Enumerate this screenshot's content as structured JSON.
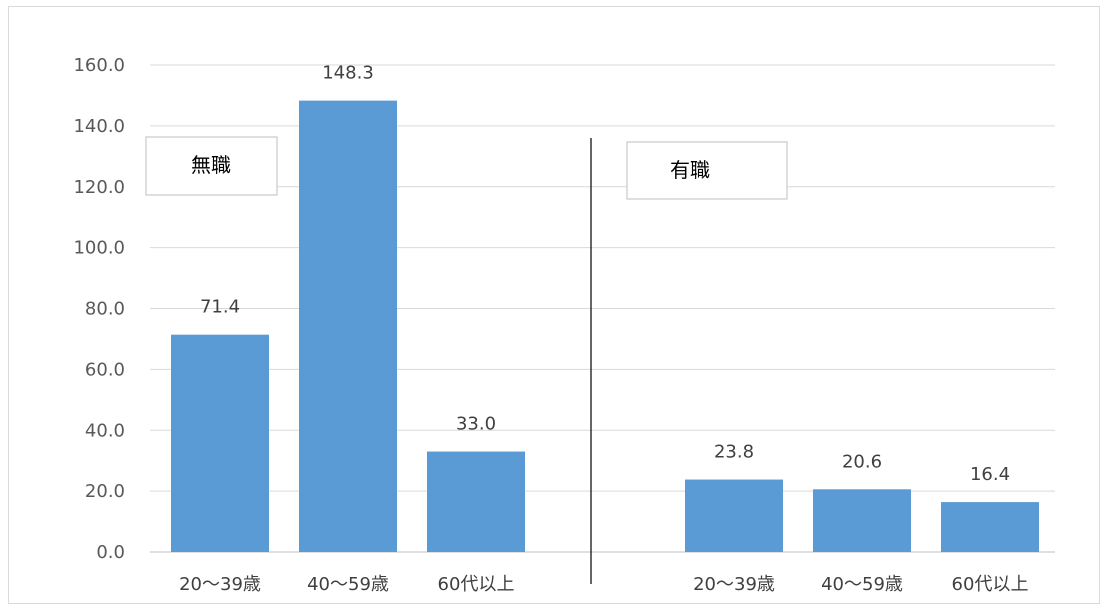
{
  "chart_data": {
    "type": "bar",
    "title": "",
    "xlabel": "",
    "ylabel": "",
    "ylim": [
      0,
      160
    ],
    "yticks": [
      "0.0",
      "20.0",
      "40.0",
      "60.0",
      "80.0",
      "100.0",
      "120.0",
      "140.0",
      "160.0"
    ],
    "grid": true,
    "color": "#5b9bd5",
    "groups": [
      {
        "label": "無職",
        "categories": [
          "20～39歳",
          "40～59歳",
          "60代以上"
        ],
        "values": [
          71.4,
          148.3,
          33.0
        ],
        "value_labels": [
          "71.4",
          "148.3",
          "33.0"
        ]
      },
      {
        "label": "有職",
        "categories": [
          "20～39歳",
          "40～59歳",
          "60代以上"
        ],
        "values": [
          23.8,
          20.6,
          16.4
        ],
        "value_labels": [
          "23.8",
          "20.6",
          "16.4"
        ]
      }
    ]
  }
}
